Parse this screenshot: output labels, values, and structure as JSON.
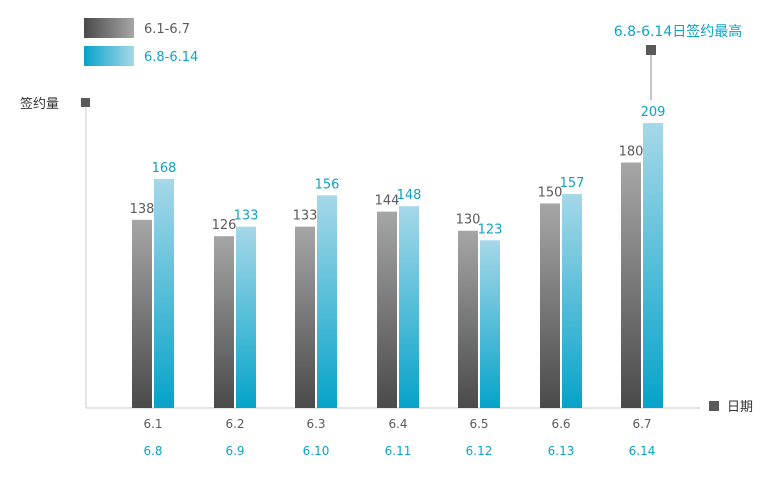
{
  "chart_data": {
    "type": "bar",
    "ylabel": "签约量",
    "xlabel": "日期",
    "series": [
      {
        "name": "6.1-6.7",
        "color": "#5a5a5a",
        "categories": [
          "6.1",
          "6.2",
          "6.3",
          "6.4",
          "6.5",
          "6.6",
          "6.7"
        ],
        "values": [
          138,
          126,
          133,
          144,
          130,
          150,
          180
        ]
      },
      {
        "name": "6.8-6.14",
        "color": "#0fa3c6",
        "categories": [
          "6.8",
          "6.9",
          "6.10",
          "6.11",
          "6.12",
          "6.13",
          "6.14"
        ],
        "values": [
          168,
          133,
          156,
          148,
          123,
          157,
          209
        ]
      }
    ],
    "ylim": [
      0,
      209
    ],
    "annotation": "6.8-6.14日签约最高",
    "grid": false,
    "legend_position": "top-left"
  }
}
